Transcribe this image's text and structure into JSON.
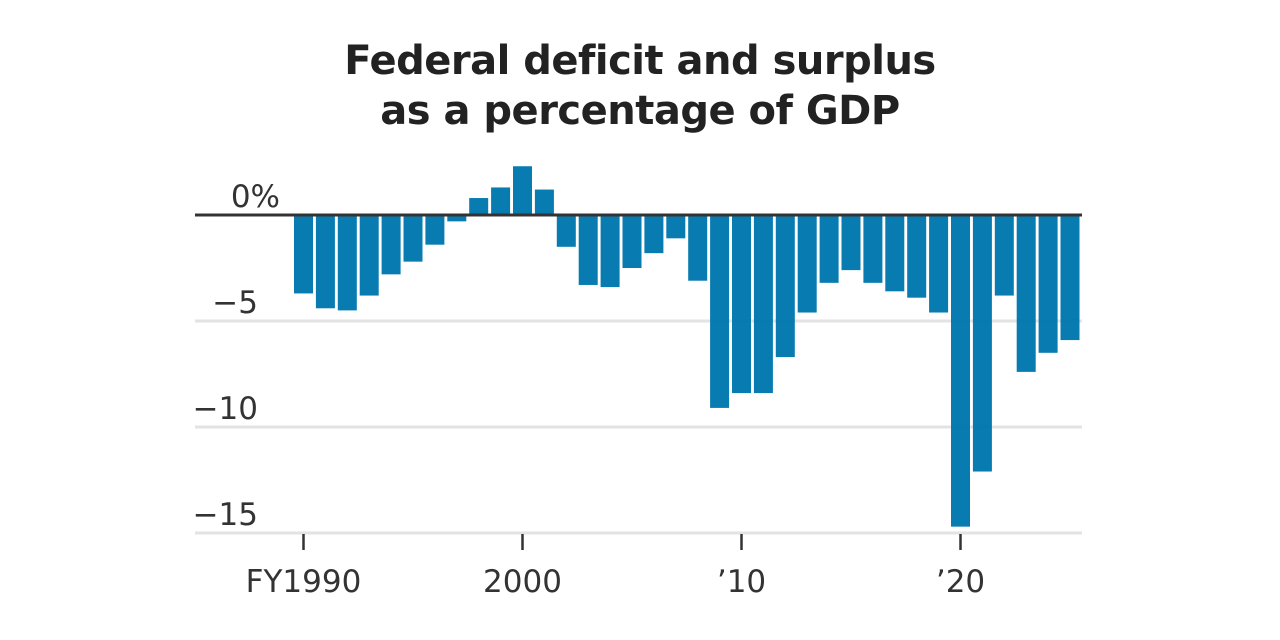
{
  "chart_data": {
    "type": "bar",
    "title": "Federal deficit and surplus as a percentage of GDP",
    "title_lines": [
      "Federal deficit and surplus",
      "as a percentage of GDP"
    ],
    "xlabel": "",
    "ylabel": "",
    "ylim": [
      -15,
      2.5
    ],
    "grid": true,
    "bar_color": "#0077ae",
    "y_ticks": [
      {
        "value": 0,
        "label": "0%"
      },
      {
        "value": -5,
        "label": "−5"
      },
      {
        "value": -10,
        "label": "−10"
      },
      {
        "value": -15,
        "label": "−15"
      }
    ],
    "x_ticks": [
      {
        "value": 1990,
        "label": "FY1990"
      },
      {
        "value": 2000,
        "label": "2000"
      },
      {
        "value": 2010,
        "label": "’10"
      },
      {
        "value": 2020,
        "label": "’20"
      }
    ],
    "categories": [
      1990,
      1991,
      1992,
      1993,
      1994,
      1995,
      1996,
      1997,
      1998,
      1999,
      2000,
      2001,
      2002,
      2003,
      2004,
      2005,
      2006,
      2007,
      2008,
      2009,
      2010,
      2011,
      2012,
      2013,
      2014,
      2015,
      2016,
      2017,
      2018,
      2019,
      2020,
      2021,
      2022,
      2023,
      2024,
      2025
    ],
    "values": [
      -3.7,
      -4.4,
      -4.5,
      -3.8,
      -2.8,
      -2.2,
      -1.4,
      -0.3,
      0.8,
      1.3,
      2.3,
      1.2,
      -1.5,
      -3.3,
      -3.4,
      -2.5,
      -1.8,
      -1.1,
      -3.1,
      -9.1,
      -8.4,
      -8.4,
      -6.7,
      -4.6,
      -3.2,
      -2.6,
      -3.2,
      -3.6,
      -3.9,
      -4.6,
      -14.7,
      -12.1,
      -3.8,
      -7.4,
      -6.5,
      -5.9
    ]
  }
}
